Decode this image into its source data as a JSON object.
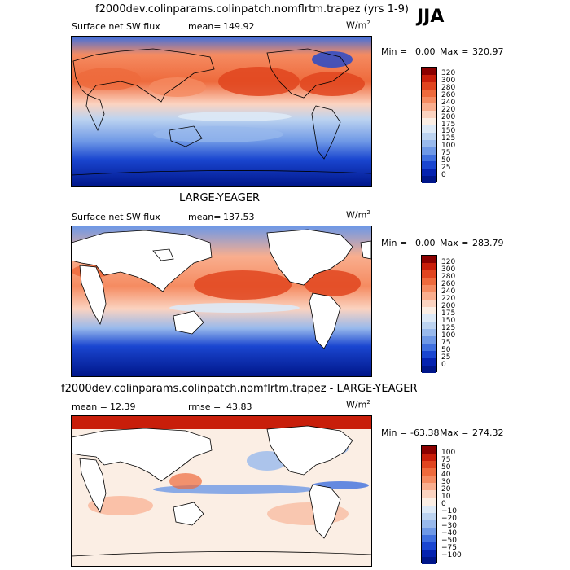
{
  "season": "JJA",
  "panels": [
    {
      "title": "f2000dev.colinparams.colinpatch.nomflrtm.trapez (yrs 1-9)",
      "variable": "Surface net SW flux",
      "mean_label": "mean=",
      "mean": "149.92",
      "rmse_label": "",
      "rmse": "",
      "units": "W/m",
      "units_exp": "2",
      "min_label": "Min =",
      "min": "0.00",
      "max_label": "Max =",
      "max": "320.97",
      "levels": [
        "320",
        "300",
        "280",
        "260",
        "240",
        "220",
        "200",
        "175",
        "150",
        "125",
        "100",
        "75",
        "50",
        "25",
        "0"
      ],
      "colors": [
        "#8b0000",
        "#c81e0a",
        "#e0451f",
        "#ee6a3c",
        "#f58b61",
        "#f9ae8e",
        "#fbd3c0",
        "#fbeee4",
        "#dde9f6",
        "#bcd3f0",
        "#98b9ec",
        "#6e98e6",
        "#3f6fde",
        "#1a46d0",
        "#0523b0",
        "#00168a"
      ]
    },
    {
      "title": "LARGE-YEAGER",
      "variable": "Surface net SW flux",
      "mean_label": "mean=",
      "mean": "137.53",
      "rmse_label": "",
      "rmse": "",
      "units": "W/m",
      "units_exp": "2",
      "min_label": "Min =",
      "min": "0.00",
      "max_label": "Max =",
      "max": "283.79",
      "levels": [
        "320",
        "300",
        "280",
        "260",
        "240",
        "220",
        "200",
        "175",
        "150",
        "125",
        "100",
        "75",
        "50",
        "25",
        "0"
      ],
      "colors": [
        "#8b0000",
        "#c81e0a",
        "#e0451f",
        "#ee6a3c",
        "#f58b61",
        "#f9ae8e",
        "#fbd3c0",
        "#fbeee4",
        "#dde9f6",
        "#bcd3f0",
        "#98b9ec",
        "#6e98e6",
        "#3f6fde",
        "#1a46d0",
        "#0523b0",
        "#00168a"
      ]
    },
    {
      "title": "f2000dev.colinparams.colinpatch.nomflrtm.trapez - LARGE-YEAGER",
      "variable": "",
      "mean_label": "mean =",
      "mean": "12.39",
      "rmse_label": "rmse =",
      "rmse": "43.83",
      "units": "W/m",
      "units_exp": "2",
      "min_label": "Min =",
      "min": "-63.38",
      "max_label": "Max =",
      "max": "274.32",
      "levels": [
        "100",
        "75",
        "50",
        "40",
        "30",
        "20",
        "10",
        "0",
        "−10",
        "−20",
        "−30",
        "−40",
        "−50",
        "−75",
        "−100"
      ],
      "colors": [
        "#8b0000",
        "#c81e0a",
        "#e0451f",
        "#ee6a3c",
        "#f58b61",
        "#f9ae8e",
        "#fbd3c0",
        "#fbeee4",
        "#dde9f6",
        "#bcd3f0",
        "#98b9ec",
        "#6e98e6",
        "#3f6fde",
        "#1a46d0",
        "#0523b0",
        "#00168a"
      ]
    }
  ]
}
